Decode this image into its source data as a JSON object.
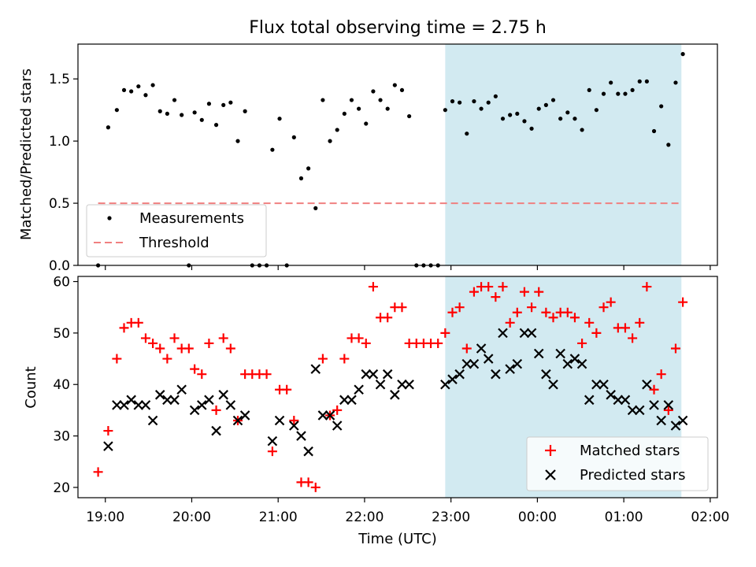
{
  "colors": {
    "measurement": "#000000",
    "threshold": "#f08080",
    "matched": "#ff0000",
    "predicted": "#000000",
    "observing_span": "#add8e6"
  },
  "chart_data": [
    {
      "type": "scatter",
      "title": "Flux total observing time = 2.75 h",
      "xlabel": "",
      "ylabel": "Matched/Predicted stars",
      "ylim": [
        0,
        1.78
      ],
      "yticks": [
        "0.0",
        "0.5",
        "1.0",
        "1.5"
      ],
      "xlim": [
        "18:41",
        "02:05"
      ],
      "xtick_labels_shown": false,
      "grid": false,
      "legend_position": "lower-left",
      "shaded_span": {
        "start": "22:56",
        "end": "01:40"
      },
      "threshold": {
        "name": "Threshold",
        "value": 0.5,
        "x_start": "18:55",
        "x_end": "01:40",
        "style": "dashed"
      },
      "series": [
        {
          "name": "Measurements",
          "marker": "dot",
          "points": [
            [
              "18:55",
              0.0
            ],
            [
              "19:02",
              1.11
            ],
            [
              "19:08",
              1.25
            ],
            [
              "19:13",
              1.41
            ],
            [
              "19:18",
              1.4
            ],
            [
              "19:23",
              1.44
            ],
            [
              "19:28",
              1.37
            ],
            [
              "19:33",
              1.45
            ],
            [
              "19:38",
              1.24
            ],
            [
              "19:43",
              1.22
            ],
            [
              "19:48",
              1.33
            ],
            [
              "19:53",
              1.21
            ],
            [
              "19:58",
              0.0
            ],
            [
              "20:02",
              1.23
            ],
            [
              "20:07",
              1.17
            ],
            [
              "20:12",
              1.3
            ],
            [
              "20:17",
              1.13
            ],
            [
              "20:22",
              1.29
            ],
            [
              "20:27",
              1.31
            ],
            [
              "20:32",
              1.0
            ],
            [
              "20:37",
              1.24
            ],
            [
              "20:42",
              0.0
            ],
            [
              "20:47",
              0.0
            ],
            [
              "20:52",
              0.0
            ],
            [
              "20:56",
              0.93
            ],
            [
              "21:01",
              1.18
            ],
            [
              "21:06",
              0.0
            ],
            [
              "21:11",
              1.03
            ],
            [
              "21:16",
              0.7
            ],
            [
              "21:21",
              0.78
            ],
            [
              "21:26",
              0.46
            ],
            [
              "21:31",
              1.33
            ],
            [
              "21:36",
              1.0
            ],
            [
              "21:41",
              1.09
            ],
            [
              "21:46",
              1.22
            ],
            [
              "21:51",
              1.33
            ],
            [
              "21:56",
              1.26
            ],
            [
              "22:01",
              1.14
            ],
            [
              "22:06",
              1.4
            ],
            [
              "22:11",
              1.33
            ],
            [
              "22:16",
              1.26
            ],
            [
              "22:21",
              1.45
            ],
            [
              "22:26",
              1.41
            ],
            [
              "22:31",
              1.2
            ],
            [
              "22:36",
              0.0
            ],
            [
              "22:41",
              0.0
            ],
            [
              "22:46",
              0.0
            ],
            [
              "22:51",
              0.0
            ],
            [
              "22:56",
              1.25
            ],
            [
              "23:01",
              1.32
            ],
            [
              "23:06",
              1.31
            ],
            [
              "23:11",
              1.06
            ],
            [
              "23:16",
              1.32
            ],
            [
              "23:21",
              1.26
            ],
            [
              "23:26",
              1.31
            ],
            [
              "23:31",
              1.36
            ],
            [
              "23:36",
              1.18
            ],
            [
              "23:41",
              1.21
            ],
            [
              "23:46",
              1.22
            ],
            [
              "23:51",
              1.16
            ],
            [
              "23:56",
              1.1
            ],
            [
              "00:01",
              1.26
            ],
            [
              "00:06",
              1.29
            ],
            [
              "00:11",
              1.33
            ],
            [
              "00:16",
              1.18
            ],
            [
              "00:21",
              1.23
            ],
            [
              "00:26",
              1.18
            ],
            [
              "00:31",
              1.09
            ],
            [
              "00:36",
              1.41
            ],
            [
              "00:41",
              1.25
            ],
            [
              "00:46",
              1.38
            ],
            [
              "00:51",
              1.47
            ],
            [
              "00:56",
              1.38
            ],
            [
              "01:01",
              1.38
            ],
            [
              "01:06",
              1.41
            ],
            [
              "01:11",
              1.48
            ],
            [
              "01:16",
              1.48
            ],
            [
              "01:21",
              1.08
            ],
            [
              "01:26",
              1.28
            ],
            [
              "01:31",
              0.97
            ],
            [
              "01:36",
              1.47
            ],
            [
              "01:41",
              1.7
            ]
          ]
        }
      ]
    },
    {
      "type": "scatter",
      "title": "",
      "xlabel": "Time (UTC)",
      "ylabel": "Count",
      "ylim": [
        18,
        61
      ],
      "yticks": [
        "20",
        "30",
        "40",
        "50",
        "60"
      ],
      "xlim": [
        "18:41",
        "02:05"
      ],
      "xticks": [
        "19:00",
        "20:00",
        "21:00",
        "22:00",
        "23:00",
        "00:00",
        "01:00",
        "02:00"
      ],
      "grid": false,
      "legend_position": "lower-right",
      "shaded_span": {
        "start": "22:56",
        "end": "01:40"
      },
      "series": [
        {
          "name": "Matched stars",
          "marker": "plus",
          "points": [
            [
              "18:55",
              23
            ],
            [
              "19:02",
              31
            ],
            [
              "19:08",
              45
            ],
            [
              "19:13",
              51
            ],
            [
              "19:18",
              52
            ],
            [
              "19:23",
              52
            ],
            [
              "19:28",
              49
            ],
            [
              "19:33",
              48
            ],
            [
              "19:38",
              47
            ],
            [
              "19:43",
              45
            ],
            [
              "19:48",
              49
            ],
            [
              "19:53",
              47
            ],
            [
              "19:58",
              47
            ],
            [
              "20:02",
              43
            ],
            [
              "20:07",
              42
            ],
            [
              "20:12",
              48
            ],
            [
              "20:17",
              35
            ],
            [
              "20:22",
              49
            ],
            [
              "20:27",
              47
            ],
            [
              "20:32",
              33
            ],
            [
              "20:37",
              42
            ],
            [
              "20:42",
              42
            ],
            [
              "20:47",
              42
            ],
            [
              "20:52",
              42
            ],
            [
              "20:56",
              27
            ],
            [
              "21:01",
              39
            ],
            [
              "21:06",
              39
            ],
            [
              "21:11",
              33
            ],
            [
              "21:16",
              21
            ],
            [
              "21:21",
              21
            ],
            [
              "21:26",
              20
            ],
            [
              "21:31",
              45
            ],
            [
              "21:36",
              34
            ],
            [
              "21:41",
              35
            ],
            [
              "21:46",
              45
            ],
            [
              "21:51",
              49
            ],
            [
              "21:56",
              49
            ],
            [
              "22:01",
              48
            ],
            [
              "22:06",
              59
            ],
            [
              "22:11",
              53
            ],
            [
              "22:16",
              53
            ],
            [
              "22:21",
              55
            ],
            [
              "22:26",
              55
            ],
            [
              "22:31",
              48
            ],
            [
              "22:36",
              48
            ],
            [
              "22:41",
              48
            ],
            [
              "22:46",
              48
            ],
            [
              "22:51",
              48
            ],
            [
              "22:56",
              50
            ],
            [
              "23:01",
              54
            ],
            [
              "23:06",
              55
            ],
            [
              "23:11",
              47
            ],
            [
              "23:16",
              58
            ],
            [
              "23:21",
              59
            ],
            [
              "23:26",
              59
            ],
            [
              "23:31",
              57
            ],
            [
              "23:36",
              59
            ],
            [
              "23:41",
              52
            ],
            [
              "23:46",
              54
            ],
            [
              "23:51",
              58
            ],
            [
              "23:56",
              55
            ],
            [
              "00:01",
              58
            ],
            [
              "00:06",
              54
            ],
            [
              "00:11",
              53
            ],
            [
              "00:16",
              54
            ],
            [
              "00:21",
              54
            ],
            [
              "00:26",
              53
            ],
            [
              "00:31",
              48
            ],
            [
              "00:36",
              52
            ],
            [
              "00:41",
              50
            ],
            [
              "00:46",
              55
            ],
            [
              "00:51",
              56
            ],
            [
              "00:56",
              51
            ],
            [
              "01:01",
              51
            ],
            [
              "01:06",
              49
            ],
            [
              "01:11",
              52
            ],
            [
              "01:16",
              59
            ],
            [
              "01:21",
              39
            ],
            [
              "01:26",
              42
            ],
            [
              "01:31",
              35
            ],
            [
              "01:36",
              47
            ],
            [
              "01:41",
              56
            ]
          ]
        },
        {
          "name": "Predicted stars",
          "marker": "x",
          "points": [
            [
              "19:02",
              28
            ],
            [
              "19:08",
              36
            ],
            [
              "19:13",
              36
            ],
            [
              "19:18",
              37
            ],
            [
              "19:23",
              36
            ],
            [
              "19:28",
              36
            ],
            [
              "19:33",
              33
            ],
            [
              "19:38",
              38
            ],
            [
              "19:43",
              37
            ],
            [
              "19:48",
              37
            ],
            [
              "19:53",
              39
            ],
            [
              "20:02",
              35
            ],
            [
              "20:07",
              36
            ],
            [
              "20:12",
              37
            ],
            [
              "20:17",
              31
            ],
            [
              "20:22",
              38
            ],
            [
              "20:27",
              36
            ],
            [
              "20:32",
              33
            ],
            [
              "20:37",
              34
            ],
            [
              "20:56",
              29
            ],
            [
              "21:01",
              33
            ],
            [
              "21:11",
              32
            ],
            [
              "21:16",
              30
            ],
            [
              "21:21",
              27
            ],
            [
              "21:26",
              43
            ],
            [
              "21:31",
              34
            ],
            [
              "21:36",
              34
            ],
            [
              "21:41",
              32
            ],
            [
              "21:46",
              37
            ],
            [
              "21:51",
              37
            ],
            [
              "21:56",
              39
            ],
            [
              "22:01",
              42
            ],
            [
              "22:06",
              42
            ],
            [
              "22:11",
              40
            ],
            [
              "22:16",
              42
            ],
            [
              "22:21",
              38
            ],
            [
              "22:26",
              40
            ],
            [
              "22:31",
              40
            ],
            [
              "22:56",
              40
            ],
            [
              "23:01",
              41
            ],
            [
              "23:06",
              42
            ],
            [
              "23:11",
              44
            ],
            [
              "23:16",
              44
            ],
            [
              "23:21",
              47
            ],
            [
              "23:26",
              45
            ],
            [
              "23:31",
              42
            ],
            [
              "23:36",
              50
            ],
            [
              "23:41",
              43
            ],
            [
              "23:46",
              44
            ],
            [
              "23:51",
              50
            ],
            [
              "23:56",
              50
            ],
            [
              "00:01",
              46
            ],
            [
              "00:06",
              42
            ],
            [
              "00:11",
              40
            ],
            [
              "00:16",
              46
            ],
            [
              "00:21",
              44
            ],
            [
              "00:26",
              45
            ],
            [
              "00:31",
              44
            ],
            [
              "00:36",
              37
            ],
            [
              "00:41",
              40
            ],
            [
              "00:46",
              40
            ],
            [
              "00:51",
              38
            ],
            [
              "00:56",
              37
            ],
            [
              "01:01",
              37
            ],
            [
              "01:06",
              35
            ],
            [
              "01:11",
              35
            ],
            [
              "01:16",
              40
            ],
            [
              "01:21",
              36
            ],
            [
              "01:26",
              33
            ],
            [
              "01:31",
              36
            ],
            [
              "01:36",
              32
            ],
            [
              "01:41",
              33
            ]
          ]
        }
      ]
    }
  ]
}
